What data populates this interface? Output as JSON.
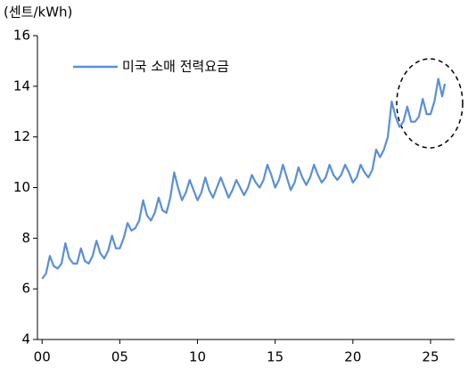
{
  "chart_data": {
    "type": "line",
    "y_axis_label": "(센트/kWh)",
    "x": [
      2000,
      2000.25,
      2000.5,
      2000.75,
      2001,
      2001.25,
      2001.5,
      2001.75,
      2002,
      2002.25,
      2002.5,
      2002.75,
      2003,
      2003.25,
      2003.5,
      2003.75,
      2004,
      2004.25,
      2004.5,
      2004.75,
      2005,
      2005.25,
      2005.5,
      2005.75,
      2006,
      2006.25,
      2006.5,
      2006.75,
      2007,
      2007.25,
      2007.5,
      2007.75,
      2008,
      2008.25,
      2008.5,
      2008.75,
      2009,
      2009.25,
      2009.5,
      2009.75,
      2010,
      2010.25,
      2010.5,
      2010.75,
      2011,
      2011.25,
      2011.5,
      2011.75,
      2012,
      2012.25,
      2012.5,
      2012.75,
      2013,
      2013.25,
      2013.5,
      2013.75,
      2014,
      2014.25,
      2014.5,
      2014.75,
      2015,
      2015.25,
      2015.5,
      2015.75,
      2016,
      2016.25,
      2016.5,
      2016.75,
      2017,
      2017.25,
      2017.5,
      2017.75,
      2018,
      2018.25,
      2018.5,
      2018.75,
      2019,
      2019.25,
      2019.5,
      2019.75,
      2020,
      2020.25,
      2020.5,
      2020.75,
      2021,
      2021.25,
      2021.5,
      2021.75,
      2022,
      2022.25,
      2022.5,
      2022.75,
      2023,
      2023.25,
      2023.5,
      2023.75,
      2024,
      2024.25,
      2024.5,
      2024.75,
      2025,
      2025.25,
      2025.5,
      2025.75,
      2025.92
    ],
    "series": [
      {
        "name": "미국 소매 전력요금",
        "color": "#5b8fd6",
        "values": [
          6.4,
          6.6,
          7.3,
          6.9,
          6.8,
          7.0,
          7.8,
          7.2,
          7.0,
          7.0,
          7.6,
          7.1,
          7.0,
          7.3,
          7.9,
          7.4,
          7.2,
          7.5,
          8.1,
          7.6,
          7.6,
          8.0,
          8.6,
          8.3,
          8.4,
          8.7,
          9.5,
          8.9,
          8.7,
          9.0,
          9.6,
          9.1,
          9.0,
          9.6,
          10.6,
          10.0,
          9.5,
          9.8,
          10.3,
          9.9,
          9.5,
          9.8,
          10.4,
          9.9,
          9.6,
          10.0,
          10.4,
          10.0,
          9.6,
          9.9,
          10.3,
          10.0,
          9.7,
          10.0,
          10.5,
          10.2,
          10.0,
          10.3,
          10.9,
          10.5,
          10.0,
          10.3,
          10.9,
          10.4,
          9.9,
          10.2,
          10.8,
          10.4,
          10.1,
          10.4,
          10.9,
          10.5,
          10.2,
          10.4,
          10.9,
          10.5,
          10.3,
          10.5,
          10.9,
          10.6,
          10.2,
          10.4,
          10.9,
          10.6,
          10.4,
          10.7,
          11.5,
          11.2,
          11.5,
          12.0,
          13.4,
          12.8,
          12.4,
          12.6,
          13.2,
          12.6,
          12.6,
          12.8,
          13.5,
          12.9,
          12.9,
          13.4,
          14.3,
          13.6,
          14.1
        ]
      }
    ],
    "xlim": [
      1999.7,
      2026.55
    ],
    "xticks": [
      {
        "value": 2000,
        "label": "00"
      },
      {
        "value": 2005,
        "label": "05"
      },
      {
        "value": 2010,
        "label": "10"
      },
      {
        "value": 2015,
        "label": "15"
      },
      {
        "value": 2020,
        "label": "20"
      },
      {
        "value": 2025,
        "label": "25"
      }
    ],
    "ylim": [
      4,
      16
    ],
    "yticks": [
      4,
      6,
      8,
      10,
      12,
      14,
      16
    ],
    "legend": "upper left"
  }
}
